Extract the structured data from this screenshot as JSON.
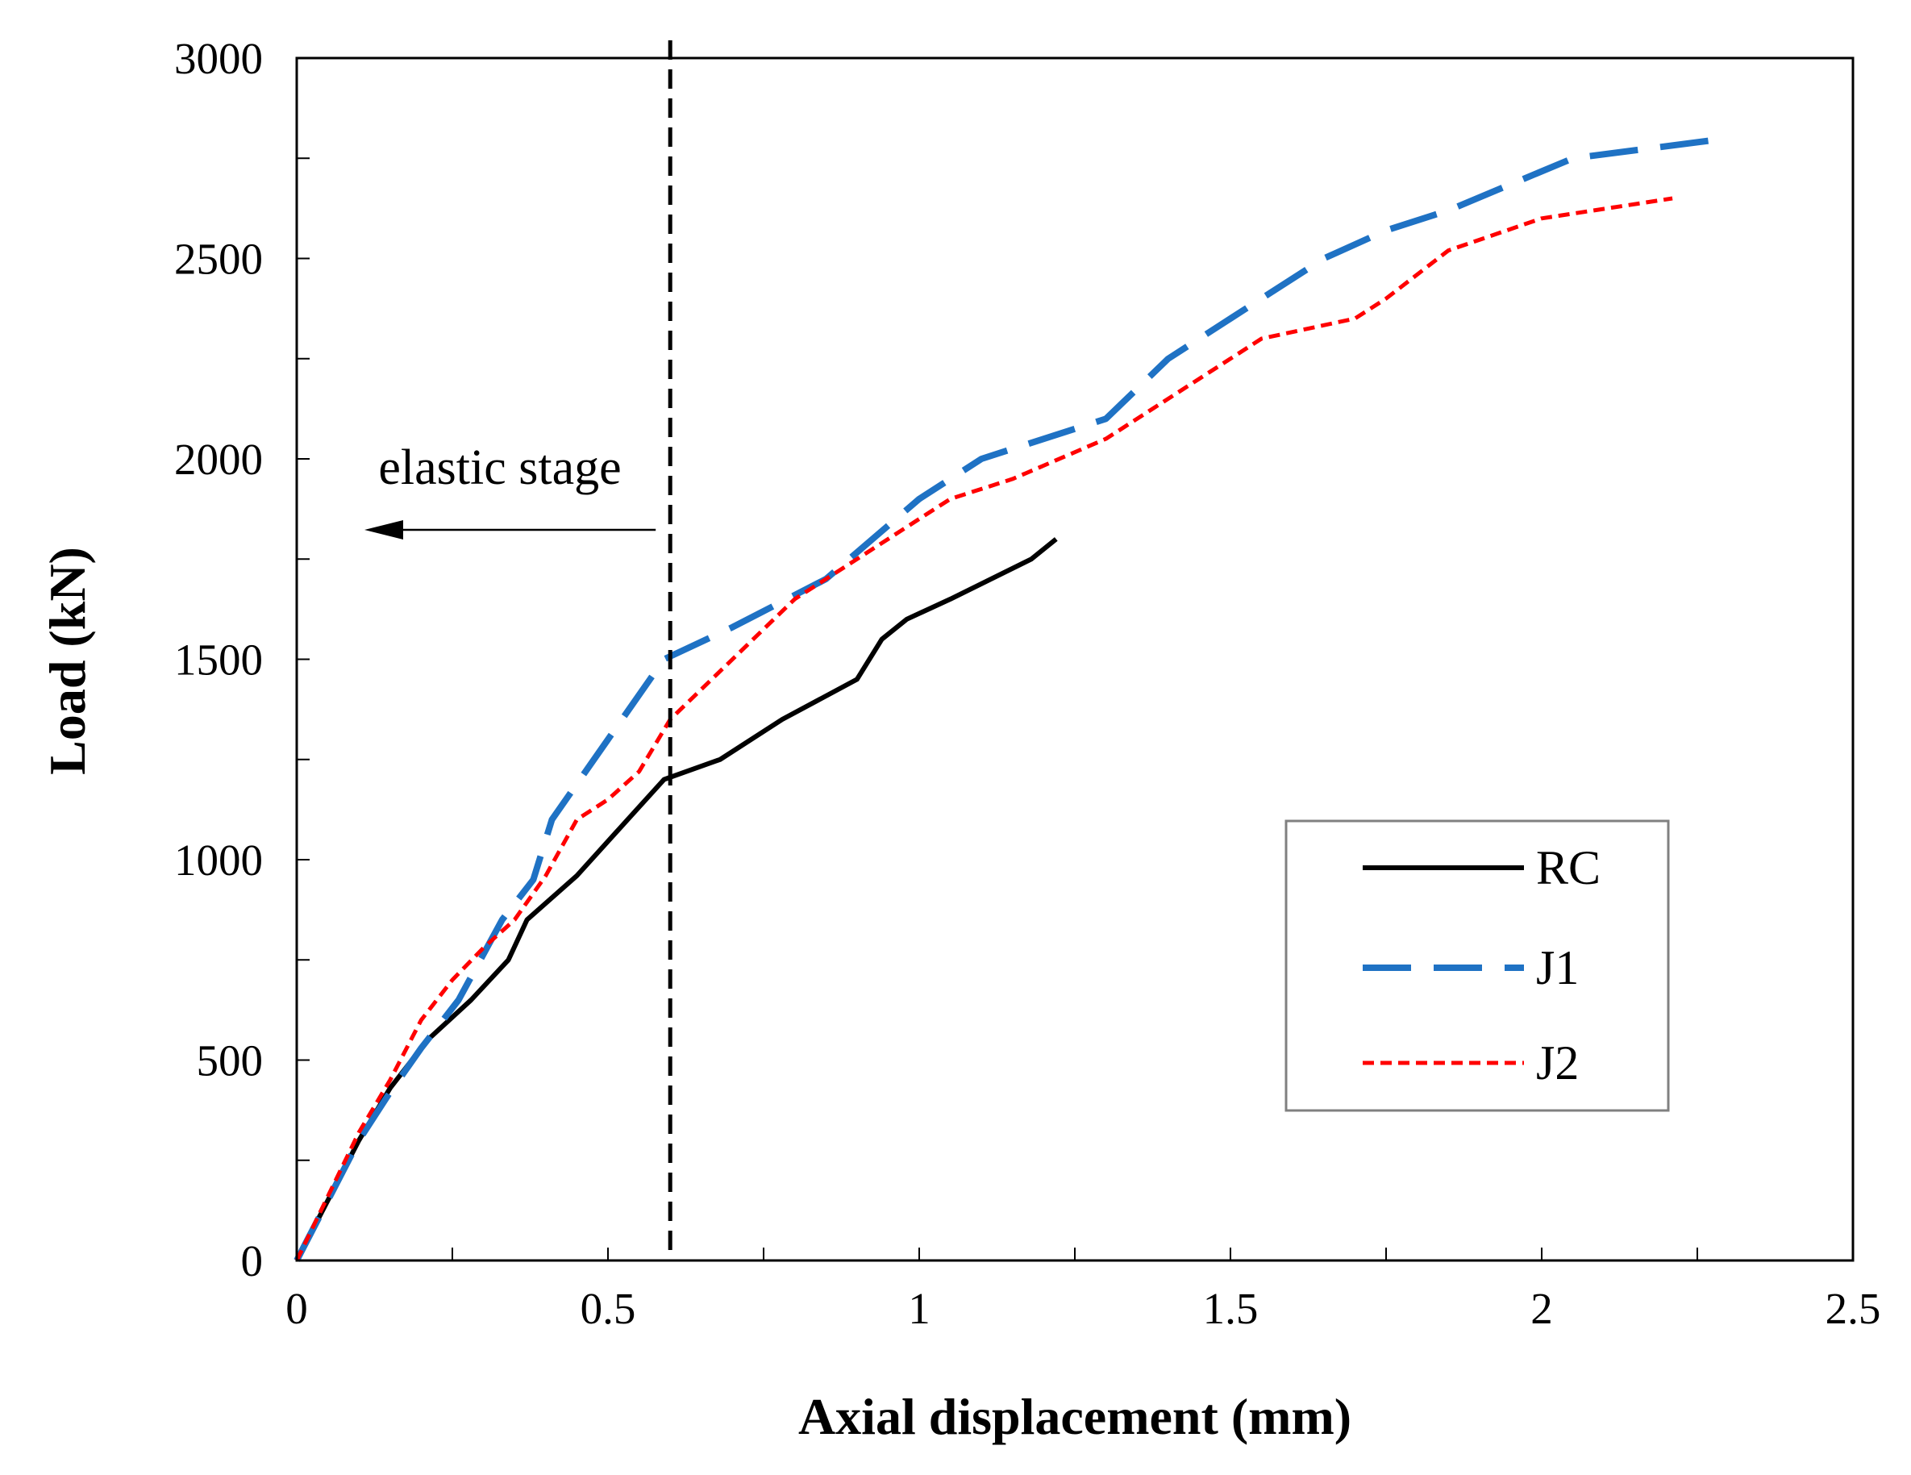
{
  "chart_data": {
    "type": "line",
    "xlabel": "Axial displacement (mm)",
    "ylabel": "Load (kN)",
    "xlim": [
      0,
      2.5
    ],
    "ylim": [
      0,
      3000
    ],
    "x_ticks": [
      0,
      0.5,
      1,
      1.5,
      2,
      2.5
    ],
    "x_tick_labels": [
      "0",
      "0.5",
      "1",
      "1.5",
      "2",
      "2.5"
    ],
    "y_ticks": [
      0,
      500,
      1000,
      1500,
      2000,
      2500,
      3000
    ],
    "y_tick_labels": [
      "0",
      "500",
      "1000",
      "1500",
      "2000",
      "2500",
      "3000"
    ],
    "x_minor_step": 0.25,
    "y_minor_step": 250,
    "grid": false,
    "legend_position": "lower-right",
    "series": [
      {
        "name": "RC",
        "color": "#000000",
        "style": "solid",
        "x": [
          0,
          0.05,
          0.1,
          0.15,
          0.21,
          0.28,
          0.34,
          0.37,
          0.45,
          0.52,
          0.59,
          0.68,
          0.78,
          0.9,
          0.94,
          0.98,
          1.05,
          1.18,
          1.22
        ],
        "y": [
          0,
          150,
          300,
          430,
          550,
          650,
          750,
          850,
          960,
          1080,
          1200,
          1250,
          1350,
          1450,
          1550,
          1600,
          1650,
          1750,
          1800
        ]
      },
      {
        "name": "J1",
        "color": "#1f72c4",
        "style": "dashed",
        "x": [
          0,
          0.05,
          0.1,
          0.15,
          0.2,
          0.26,
          0.33,
          0.38,
          0.41,
          0.5,
          0.59,
          0.7,
          0.85,
          1.0,
          1.1,
          1.3,
          1.4,
          1.5,
          1.65,
          1.75,
          1.85,
          2.05,
          2.3
        ],
        "y": [
          0,
          150,
          300,
          420,
          530,
          650,
          850,
          950,
          1100,
          1300,
          1500,
          1580,
          1700,
          1900,
          2000,
          2100,
          2250,
          2350,
          2500,
          2570,
          2620,
          2750,
          2800
        ],
        "dash": [
          60,
          28
        ]
      },
      {
        "name": "J2",
        "color": "#ff0000",
        "style": "dotted",
        "x": [
          0,
          0.05,
          0.1,
          0.15,
          0.2,
          0.25,
          0.3,
          0.35,
          0.4,
          0.45,
          0.5,
          0.55,
          0.6,
          0.7,
          0.8,
          0.9,
          1.0,
          1.05,
          1.15,
          1.3,
          1.45,
          1.55,
          1.7,
          1.75,
          1.85,
          2.0,
          2.21
        ],
        "y": [
          0,
          160,
          320,
          450,
          600,
          700,
          780,
          850,
          960,
          1100,
          1150,
          1220,
          1350,
          1500,
          1650,
          1750,
          1850,
          1900,
          1950,
          2050,
          2200,
          2300,
          2350,
          2400,
          2520,
          2600,
          2650
        ],
        "dash": [
          14,
          8
        ]
      }
    ],
    "reference_lines": [
      {
        "name": "elastic-limit",
        "x": 0.6,
        "style": "dashed",
        "color": "#000000"
      }
    ],
    "annotations": [
      {
        "text": "elastic stage",
        "arrow": "left"
      }
    ]
  }
}
